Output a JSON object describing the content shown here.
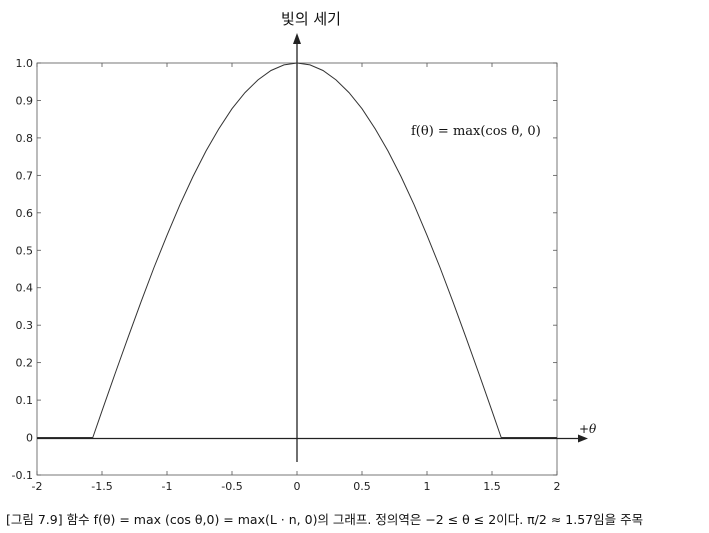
{
  "chart_data": {
    "type": "line",
    "title": "",
    "ylabel": "빛의 세기",
    "xlabel": "+θ",
    "annotation": "f(θ) = max(cos θ, 0)",
    "xlim": [
      -2,
      2
    ],
    "ylim": [
      -0.1,
      1.0
    ],
    "xticks": [
      "-2",
      "-1.5",
      "-1",
      "-0.5",
      "0",
      "0.5",
      "1",
      "1.5",
      "2"
    ],
    "yticks": [
      "-0.1",
      "0",
      "0.1",
      "0.2",
      "0.3",
      "0.4",
      "0.5",
      "0.6",
      "0.7",
      "0.8",
      "0.9",
      "1.0"
    ],
    "grid": false,
    "series": [
      {
        "x": [
          -2.0,
          -1.9,
          -1.8,
          -1.7,
          -1.6,
          -1.5708,
          -1.5,
          -1.4,
          -1.3,
          -1.2,
          -1.1,
          -1.0,
          -0.9,
          -0.8,
          -0.7,
          -0.6,
          -0.5,
          -0.4,
          -0.3,
          -0.2,
          -0.1,
          0.0,
          0.1,
          0.2,
          0.3,
          0.4,
          0.5,
          0.6,
          0.7,
          0.8,
          0.9,
          1.0,
          1.1,
          1.2,
          1.3,
          1.4,
          1.5,
          1.5708,
          1.6,
          1.7,
          1.8,
          1.9,
          2.0
        ],
        "values": [
          0,
          0,
          0,
          0,
          0,
          0,
          0.071,
          0.17,
          0.267,
          0.362,
          0.454,
          0.54,
          0.622,
          0.697,
          0.765,
          0.825,
          0.878,
          0.921,
          0.955,
          0.98,
          0.995,
          1.0,
          0.995,
          0.98,
          0.955,
          0.921,
          0.878,
          0.825,
          0.765,
          0.697,
          0.622,
          0.54,
          0.454,
          0.362,
          0.267,
          0.17,
          0.071,
          0,
          0,
          0,
          0,
          0,
          0
        ]
      }
    ]
  },
  "caption": {
    "figure_ref": "[그림 7.9]",
    "text": "함수 f(θ) = max (cos θ,0) = max(L · n, 0)의 그래프. 정의역은 −2 ≤ θ ≤ 2이다. π/2 ≈ 1.57임을 주목"
  }
}
